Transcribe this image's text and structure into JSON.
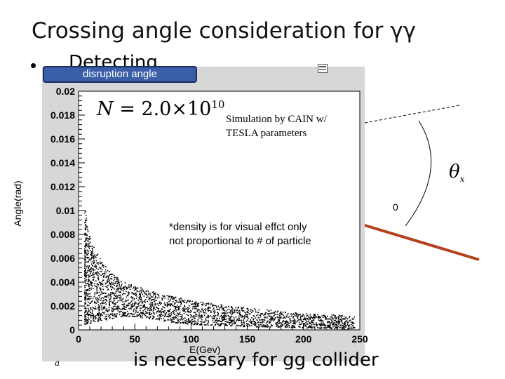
{
  "slide": {
    "title": "Crossing angle consideration for  γγ",
    "bullet": "•",
    "behind_text": "Detecting",
    "bottom_text": "is necessary for gg collider",
    "small_glyph": "a",
    "theta_symbol": "θ",
    "theta_sub": "x",
    "stray_mark": "0"
  },
  "panel": {
    "legend_tab": "disruption angle",
    "n_symbol": "N",
    "n_value": " = 2.0×10",
    "n_exponent": "10",
    "simulation_note": [
      "Simulation by CAIN w/",
      "TESLA parameters"
    ],
    "density_note": [
      "*density is for visual effct only",
      "not proportional to # of particle"
    ]
  },
  "colors": {
    "panel_background": "#d7d7d7",
    "plot_background": "#ffffff",
    "legend_tab": "#3a5fa8",
    "arrow": "#b5411c",
    "scatter": "#000000"
  },
  "chart_data": {
    "type": "scatter",
    "title": "",
    "xlabel": "E(Gev)",
    "ylabel": "Angle(rad)",
    "xlim": [
      0,
      250
    ],
    "ylim": [
      0,
      0.02
    ],
    "x_ticks": [
      "0",
      "50",
      "100",
      "150",
      "200",
      "250"
    ],
    "y_ticks": [
      "0",
      "0.002",
      "0.004",
      "0.006",
      "0.008",
      "0.01",
      "0.012",
      "0.014",
      "0.016",
      "0.018",
      "0.02"
    ],
    "grid": false,
    "legend": "none",
    "envelope_upper": [
      [
        5,
        0.0105
      ],
      [
        8,
        0.0085
      ],
      [
        12,
        0.0072
      ],
      [
        20,
        0.0058
      ],
      [
        30,
        0.0047
      ],
      [
        40,
        0.0041
      ],
      [
        60,
        0.0034
      ],
      [
        80,
        0.0029
      ],
      [
        100,
        0.0025
      ],
      [
        130,
        0.0021
      ],
      [
        160,
        0.0018
      ],
      [
        200,
        0.0014
      ],
      [
        230,
        0.0013
      ],
      [
        245,
        0.0012
      ]
    ],
    "envelope_lower": [
      [
        5,
        0.0005
      ],
      [
        20,
        0.0008
      ],
      [
        40,
        0.0012
      ],
      [
        60,
        0.001
      ],
      [
        80,
        0.0007
      ],
      [
        100,
        0.0005
      ],
      [
        150,
        0.0003
      ],
      [
        200,
        0.0002
      ],
      [
        245,
        0.0001
      ]
    ]
  }
}
